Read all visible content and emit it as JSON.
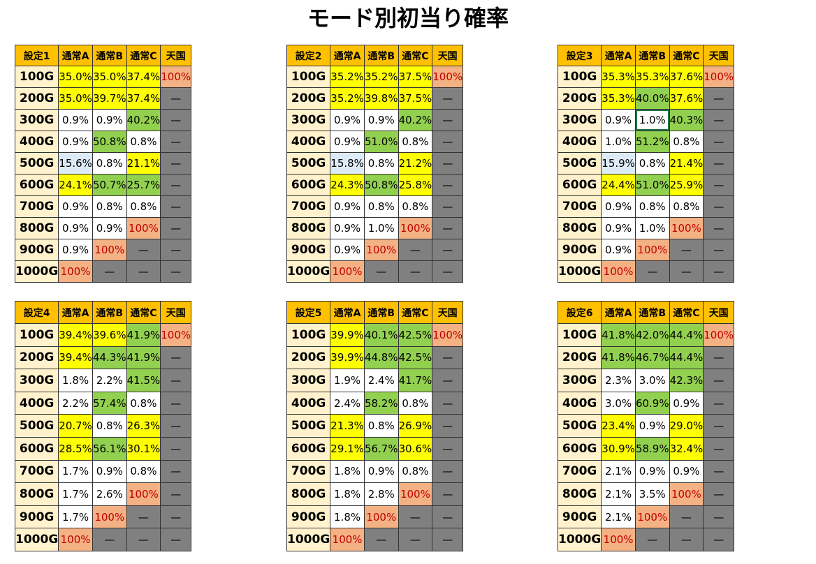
{
  "title": "モード別初当り確率",
  "columns": [
    "通常A",
    "通常B",
    "通常C",
    "天国"
  ],
  "rows": [
    "100G",
    "200G",
    "300G",
    "400G",
    "500G",
    "600G",
    "700G",
    "800G",
    "900G",
    "1000G"
  ],
  "dash": "—",
  "legend_colors": {
    "yellow": "#ffff00",
    "green": "#92d050",
    "orange": "#f4b183",
    "light_blue": "#ddebf7",
    "gray": "#808080",
    "header": "#ffc000",
    "row_label": "#fff2cc"
  },
  "tables": [
    {
      "name": "設定1",
      "values": [
        [
          "35.0%",
          "35.0%",
          "37.4%",
          "100%"
        ],
        [
          "35.0%",
          "39.7%",
          "37.4%",
          "—"
        ],
        [
          "0.9%",
          "0.9%",
          "40.2%",
          "—"
        ],
        [
          "0.9%",
          "50.8%",
          "0.8%",
          "—"
        ],
        [
          "15.6%",
          "0.8%",
          "21.1%",
          "—"
        ],
        [
          "24.1%",
          "50.7%",
          "25.7%",
          "—"
        ],
        [
          "0.9%",
          "0.8%",
          "0.8%",
          "—"
        ],
        [
          "0.9%",
          "0.9%",
          "100%",
          "—"
        ],
        [
          "0.9%",
          "100%",
          "—",
          "—"
        ],
        [
          "100%",
          "—",
          "—",
          "—"
        ]
      ],
      "colors": [
        [
          "y",
          "y",
          "y",
          "o"
        ],
        [
          "y",
          "y",
          "y",
          "d"
        ],
        [
          "w",
          "w",
          "g",
          "d"
        ],
        [
          "w",
          "g",
          "w",
          "d"
        ],
        [
          "b",
          "w",
          "y",
          "d"
        ],
        [
          "y",
          "g",
          "g",
          "d"
        ],
        [
          "w",
          "w",
          "w",
          "d"
        ],
        [
          "w",
          "w",
          "o",
          "d"
        ],
        [
          "w",
          "o",
          "d",
          "d"
        ],
        [
          "o",
          "d",
          "d",
          "d"
        ]
      ]
    },
    {
      "name": "設定2",
      "values": [
        [
          "35.2%",
          "35.2%",
          "37.5%",
          "100%"
        ],
        [
          "35.2%",
          "39.8%",
          "37.5%",
          "—"
        ],
        [
          "0.9%",
          "0.9%",
          "40.2%",
          "—"
        ],
        [
          "0.9%",
          "51.0%",
          "0.8%",
          "—"
        ],
        [
          "15.8%",
          "0.8%",
          "21.2%",
          "—"
        ],
        [
          "24.3%",
          "50.8%",
          "25.8%",
          "—"
        ],
        [
          "0.9%",
          "0.8%",
          "0.8%",
          "—"
        ],
        [
          "0.9%",
          "1.0%",
          "100%",
          "—"
        ],
        [
          "0.9%",
          "100%",
          "—",
          "—"
        ],
        [
          "100%",
          "—",
          "—",
          "—"
        ]
      ],
      "colors": [
        [
          "y",
          "y",
          "y",
          "o"
        ],
        [
          "y",
          "y",
          "y",
          "d"
        ],
        [
          "w",
          "w",
          "g",
          "d"
        ],
        [
          "w",
          "g",
          "w",
          "d"
        ],
        [
          "b",
          "w",
          "y",
          "d"
        ],
        [
          "y",
          "g",
          "y",
          "d"
        ],
        [
          "w",
          "w",
          "w",
          "d"
        ],
        [
          "w",
          "w",
          "o",
          "d"
        ],
        [
          "w",
          "o",
          "d",
          "d"
        ],
        [
          "o",
          "d",
          "d",
          "d"
        ]
      ]
    },
    {
      "name": "設定3",
      "values": [
        [
          "35.3%",
          "35.3%",
          "37.6%",
          "100%"
        ],
        [
          "35.3%",
          "40.0%",
          "37.6%",
          "—"
        ],
        [
          "0.9%",
          "1.0%",
          "40.3%",
          "—"
        ],
        [
          "1.0%",
          "51.2%",
          "0.8%",
          "—"
        ],
        [
          "15.9%",
          "0.8%",
          "21.4%",
          "—"
        ],
        [
          "24.4%",
          "51.0%",
          "25.9%",
          "—"
        ],
        [
          "0.9%",
          "0.8%",
          "0.8%",
          "—"
        ],
        [
          "0.9%",
          "1.0%",
          "100%",
          "—"
        ],
        [
          "0.9%",
          "100%",
          "—",
          "—"
        ],
        [
          "100%",
          "—",
          "—",
          "—"
        ]
      ],
      "colors": [
        [
          "y",
          "y",
          "y",
          "o"
        ],
        [
          "y",
          "g",
          "y",
          "d"
        ],
        [
          "w",
          "w",
          "g",
          "d"
        ],
        [
          "w",
          "g",
          "w",
          "d"
        ],
        [
          "b",
          "w",
          "y",
          "d"
        ],
        [
          "y",
          "g",
          "y",
          "d"
        ],
        [
          "w",
          "w",
          "w",
          "d"
        ],
        [
          "w",
          "w",
          "o",
          "d"
        ],
        [
          "w",
          "o",
          "d",
          "d"
        ],
        [
          "o",
          "d",
          "d",
          "d"
        ]
      ]
    },
    {
      "name": "設定4",
      "values": [
        [
          "39.4%",
          "39.6%",
          "41.9%",
          "100%"
        ],
        [
          "39.4%",
          "44.3%",
          "41.9%",
          "—"
        ],
        [
          "1.8%",
          "2.2%",
          "41.5%",
          "—"
        ],
        [
          "2.2%",
          "57.4%",
          "0.8%",
          "—"
        ],
        [
          "20.7%",
          "0.8%",
          "26.3%",
          "—"
        ],
        [
          "28.5%",
          "56.1%",
          "30.1%",
          "—"
        ],
        [
          "1.7%",
          "0.9%",
          "0.8%",
          "—"
        ],
        [
          "1.7%",
          "2.6%",
          "100%",
          "—"
        ],
        [
          "1.7%",
          "100%",
          "—",
          "—"
        ],
        [
          "100%",
          "—",
          "—",
          "—"
        ]
      ],
      "colors": [
        [
          "y",
          "y",
          "g",
          "o"
        ],
        [
          "y",
          "g",
          "g",
          "d"
        ],
        [
          "w",
          "w",
          "g",
          "d"
        ],
        [
          "w",
          "g",
          "w",
          "d"
        ],
        [
          "y",
          "w",
          "y",
          "d"
        ],
        [
          "y",
          "g",
          "y",
          "d"
        ],
        [
          "w",
          "w",
          "w",
          "d"
        ],
        [
          "w",
          "w",
          "o",
          "d"
        ],
        [
          "w",
          "o",
          "d",
          "d"
        ],
        [
          "o",
          "d",
          "d",
          "d"
        ]
      ]
    },
    {
      "name": "設定5",
      "values": [
        [
          "39.9%",
          "40.1%",
          "42.5%",
          "100%"
        ],
        [
          "39.9%",
          "44.8%",
          "42.5%",
          "—"
        ],
        [
          "1.9%",
          "2.4%",
          "41.7%",
          "—"
        ],
        [
          "2.4%",
          "58.2%",
          "0.8%",
          "—"
        ],
        [
          "21.3%",
          "0.8%",
          "26.9%",
          "—"
        ],
        [
          "29.1%",
          "56.7%",
          "30.6%",
          "—"
        ],
        [
          "1.8%",
          "0.9%",
          "0.8%",
          "—"
        ],
        [
          "1.8%",
          "2.8%",
          "100%",
          "—"
        ],
        [
          "1.8%",
          "100%",
          "—",
          "—"
        ],
        [
          "100%",
          "—",
          "—",
          "—"
        ]
      ],
      "colors": [
        [
          "y",
          "g",
          "g",
          "o"
        ],
        [
          "y",
          "g",
          "g",
          "d"
        ],
        [
          "w",
          "w",
          "g",
          "d"
        ],
        [
          "w",
          "g",
          "w",
          "d"
        ],
        [
          "y",
          "w",
          "y",
          "d"
        ],
        [
          "y",
          "g",
          "y",
          "d"
        ],
        [
          "w",
          "w",
          "w",
          "d"
        ],
        [
          "w",
          "w",
          "o",
          "d"
        ],
        [
          "w",
          "o",
          "d",
          "d"
        ],
        [
          "o",
          "d",
          "d",
          "d"
        ]
      ]
    },
    {
      "name": "設定6",
      "values": [
        [
          "41.8%",
          "42.0%",
          "44.4%",
          "100%"
        ],
        [
          "41.8%",
          "46.7%",
          "44.4%",
          "—"
        ],
        [
          "2.3%",
          "3.0%",
          "42.3%",
          "—"
        ],
        [
          "3.0%",
          "60.9%",
          "0.9%",
          "—"
        ],
        [
          "23.4%",
          "0.9%",
          "29.0%",
          "—"
        ],
        [
          "30.9%",
          "58.9%",
          "32.4%",
          "—"
        ],
        [
          "2.1%",
          "0.9%",
          "0.9%",
          "—"
        ],
        [
          "2.1%",
          "3.5%",
          "100%",
          "—"
        ],
        [
          "2.1%",
          "100%",
          "—",
          "—"
        ],
        [
          "100%",
          "—",
          "—",
          "—"
        ]
      ],
      "colors": [
        [
          "g",
          "g",
          "g",
          "o"
        ],
        [
          "g",
          "g",
          "g",
          "d"
        ],
        [
          "w",
          "w",
          "g",
          "d"
        ],
        [
          "w",
          "g",
          "w",
          "d"
        ],
        [
          "y",
          "w",
          "y",
          "d"
        ],
        [
          "y",
          "g",
          "y",
          "d"
        ],
        [
          "w",
          "w",
          "w",
          "d"
        ],
        [
          "w",
          "w",
          "o",
          "d"
        ],
        [
          "w",
          "o",
          "d",
          "d"
        ],
        [
          "o",
          "d",
          "d",
          "d"
        ]
      ]
    }
  ]
}
